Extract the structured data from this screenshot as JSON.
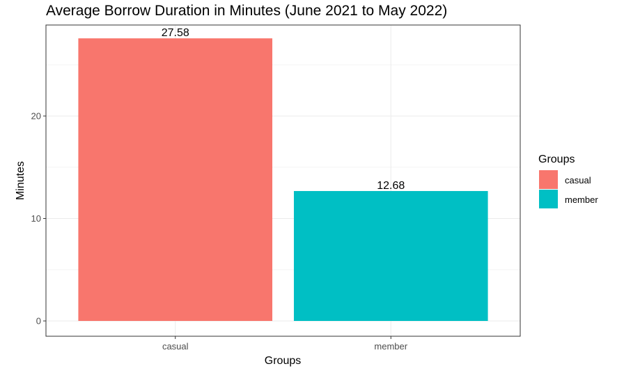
{
  "chart_data": {
    "type": "bar",
    "title": "Average Borrow Duration in Minutes (June 2021 to May 2022)",
    "xlabel": "Groups",
    "ylabel": "Minutes",
    "categories": [
      "casual",
      "member"
    ],
    "values": [
      27.58,
      12.68
    ],
    "value_labels": [
      "27.58",
      "12.68"
    ],
    "colors": [
      "#F8766D",
      "#00BFC4"
    ],
    "ylim": [
      0,
      29.0
    ],
    "yticks": [
      0,
      10,
      20
    ],
    "ytick_labels": [
      "0",
      "10",
      "20"
    ],
    "grid": true,
    "legend": {
      "title": "Groups",
      "position": "right",
      "entries": [
        "casual",
        "member"
      ]
    }
  }
}
